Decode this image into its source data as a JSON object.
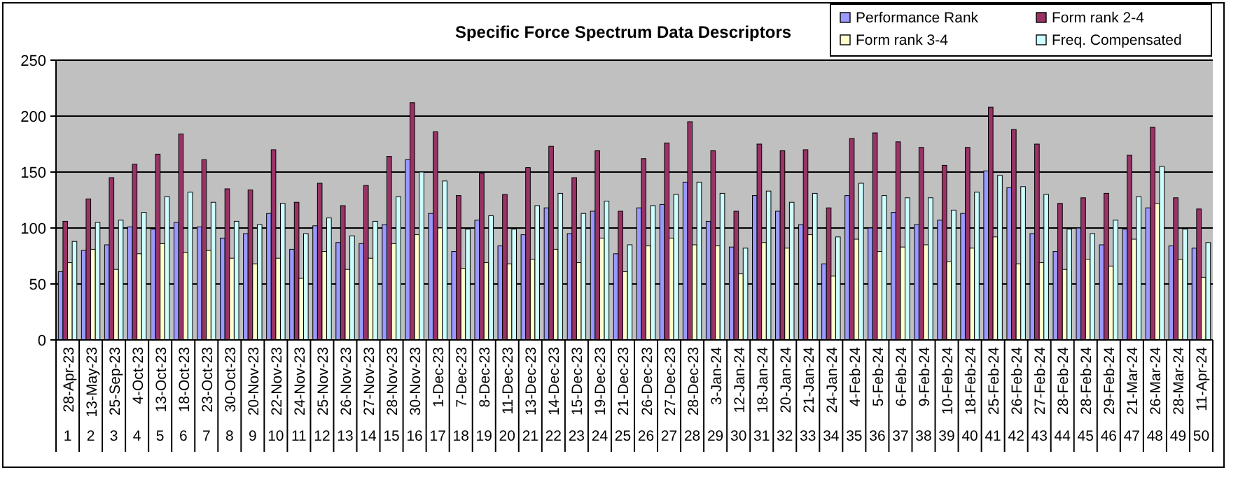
{
  "chart_data": {
    "type": "bar",
    "title": "Specific Force Spectrum Data Descriptors",
    "categories": [
      "28-Apr-23",
      "13-May-23",
      "25-Sep-23",
      "4-Oct-23",
      "13-Oct-23",
      "18-Oct-23",
      "23-Oct-23",
      "30-Oct-23",
      "20-Nov-23",
      "22-Nov-23",
      "24-Nov-23",
      "25-Nov-23",
      "26-Nov-23",
      "27-Nov-23",
      "28-Nov-23",
      "30-Nov-23",
      "1-Dec-23",
      "7-Dec-23",
      "8-Dec-23",
      "11-Dec-23",
      "13-Dec-23",
      "14-Dec-23",
      "15-Dec-23",
      "19-Dec-23",
      "21-Dec-23",
      "26-Dec-23",
      "27-Dec-23",
      "28-Dec-23",
      "3-Jan-24",
      "12-Jan-24",
      "18-Jan-24",
      "20-Jan-24",
      "21-Jan-24",
      "24-Jan-24",
      "4-Feb-24",
      "5-Feb-24",
      "6-Feb-24",
      "9-Feb-24",
      "10-Feb-24",
      "18-Feb-24",
      "25-Feb-24",
      "26-Feb-24",
      "27-Feb-24",
      "28-Feb-24",
      "28-Feb-24",
      "29-Feb-24",
      "21-Mar-24",
      "26-Mar-24",
      "28-Mar-24",
      "11-Apr-24"
    ],
    "series": [
      {
        "name": "Performance Rank",
        "color": "#9999ff",
        "values": [
          61,
          80,
          85,
          101,
          99,
          105,
          101,
          91,
          95,
          113,
          81,
          102,
          87,
          86,
          103,
          161,
          113,
          79,
          107,
          84,
          94,
          118,
          95,
          115,
          77,
          118,
          121,
          141,
          106,
          83,
          129,
          115,
          103,
          68,
          129,
          100,
          114,
          103,
          107,
          113,
          151,
          136,
          95,
          79,
          100,
          85,
          99,
          118,
          84,
          82
        ]
      },
      {
        "name": "Form rank 2-4",
        "color": "#993366",
        "values": [
          106,
          126,
          145,
          157,
          166,
          184,
          161,
          135,
          134,
          170,
          123,
          140,
          120,
          138,
          164,
          212,
          186,
          129,
          149,
          130,
          154,
          173,
          145,
          169,
          115,
          162,
          176,
          195,
          169,
          115,
          175,
          169,
          170,
          118,
          180,
          185,
          177,
          172,
          156,
          172,
          208,
          188,
          175,
          122,
          127,
          131,
          165,
          190,
          127,
          117
        ]
      },
      {
        "name": "Form rank 3-4",
        "color": "#ffffcc",
        "values": [
          69,
          81,
          63,
          77,
          86,
          78,
          80,
          73,
          68,
          73,
          55,
          79,
          63,
          73,
          86,
          94,
          100,
          64,
          69,
          68,
          72,
          81,
          69,
          91,
          61,
          84,
          91,
          85,
          84,
          59,
          87,
          82,
          94,
          57,
          90,
          79,
          83,
          85,
          70,
          82,
          92,
          68,
          69,
          63,
          72,
          66,
          90,
          122,
          72,
          56
        ]
      },
      {
        "name": "Freq. Compensated",
        "color": "#ccffff",
        "values": [
          88,
          105,
          107,
          114,
          128,
          132,
          123,
          106,
          103,
          122,
          95,
          109,
          93,
          106,
          128,
          150,
          142,
          99,
          111,
          99,
          120,
          131,
          113,
          124,
          85,
          120,
          130,
          141,
          131,
          82,
          133,
          123,
          131,
          92,
          140,
          129,
          127,
          127,
          116,
          132,
          147,
          137,
          130,
          99,
          95,
          107,
          128,
          155,
          99,
          87
        ]
      }
    ],
    "ylim": [
      0,
      250
    ],
    "yticks": [
      0,
      50,
      100,
      150,
      200,
      250
    ],
    "grid": "y",
    "legend": "top right",
    "annotations": [
      "1",
      "2",
      "3",
      "4",
      "5",
      "6",
      "7",
      "8",
      "9",
      "10",
      "11",
      "12",
      "13",
      "14",
      "15",
      "16",
      "17",
      "18",
      "19",
      "20",
      "21",
      "22",
      "23",
      "24",
      "25",
      "26",
      "27",
      "28",
      "29",
      "30",
      "31",
      "32",
      "33",
      "34",
      "35",
      "36",
      "37",
      "38",
      "39",
      "40",
      "41",
      "42",
      "43",
      "44",
      "45",
      "46",
      "47",
      "48",
      "49",
      "50"
    ]
  }
}
